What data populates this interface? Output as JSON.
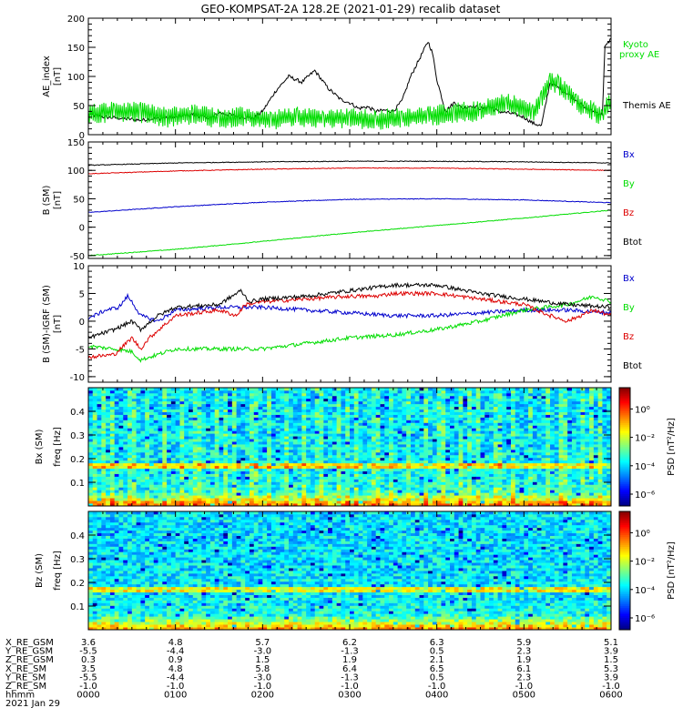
{
  "title": "GEO-KOMPSAT-2A 128.2E (2021-01-29) recalib dataset",
  "chart_data": [
    {
      "type": "line",
      "id": "ae",
      "ylabel": "AE_index",
      "unit": "[nT]",
      "ylim": [
        0,
        200
      ],
      "yticks": [
        0,
        50,
        100,
        150,
        200
      ],
      "x_hours": [
        0,
        6
      ],
      "series": [
        {
          "name": "Themis AE",
          "color": "#000000",
          "x": [
            0,
            0.2,
            0.4,
            0.6,
            0.8,
            1.0,
            1.2,
            1.4,
            1.5,
            1.7,
            1.9,
            2.0,
            2.15,
            2.3,
            2.45,
            2.6,
            2.75,
            2.9,
            3.0,
            3.1,
            3.2,
            3.3,
            3.4,
            3.5,
            3.6,
            3.7,
            3.8,
            3.9,
            3.95,
            4.0,
            4.1,
            4.2,
            4.3,
            4.4,
            4.5,
            4.6,
            4.7,
            4.8,
            4.9,
            5.0,
            5.1,
            5.2,
            5.3,
            5.4,
            5.5,
            5.6,
            5.7,
            5.8,
            5.9,
            5.93,
            6.0
          ],
          "y": [
            35,
            30,
            28,
            25,
            28,
            30,
            35,
            28,
            38,
            32,
            28,
            40,
            75,
            100,
            90,
            110,
            80,
            60,
            55,
            45,
            48,
            40,
            42,
            40,
            58,
            100,
            130,
            160,
            140,
            95,
            40,
            55,
            45,
            50,
            45,
            48,
            40,
            38,
            35,
            30,
            20,
            15,
            90,
            80,
            70,
            60,
            45,
            40,
            35,
            150,
            165
          ]
        },
        {
          "name": "Kyoto proxy AE",
          "color": "#00dd00",
          "x": [
            0,
            0.3,
            0.6,
            0.9,
            1.2,
            1.5,
            1.8,
            2.1,
            2.4,
            2.7,
            3.0,
            3.3,
            3.6,
            3.9,
            4.2,
            4.5,
            4.8,
            5.0,
            5.1,
            5.2,
            5.3,
            5.4,
            5.5,
            5.6,
            5.7,
            5.8,
            5.9,
            5.95,
            6.0
          ],
          "y": [
            35,
            40,
            38,
            30,
            35,
            28,
            32,
            25,
            30,
            28,
            28,
            25,
            30,
            32,
            38,
            40,
            55,
            45,
            35,
            60,
            95,
            85,
            70,
            60,
            45,
            40,
            30,
            50,
            65
          ]
        }
      ]
    },
    {
      "type": "line",
      "id": "b_sm",
      "ylabel": "B (SM)",
      "unit": "[nT]",
      "ylim": [
        -55,
        150
      ],
      "yticks": [
        -50,
        0,
        50,
        100,
        150
      ],
      "x_hours": [
        0,
        6
      ],
      "series": [
        {
          "name": "Bx",
          "color": "#0000cc",
          "x": [
            0,
            1,
            2,
            3,
            4,
            5,
            6
          ],
          "y": [
            26,
            36,
            44,
            49,
            50,
            48,
            43
          ]
        },
        {
          "name": "By",
          "color": "#00dd00",
          "x": [
            0,
            1,
            2,
            3,
            4,
            5,
            6
          ],
          "y": [
            -50,
            -39,
            -25,
            -10,
            3,
            16,
            30
          ]
        },
        {
          "name": "Bz",
          "color": "#dd0000",
          "x": [
            0,
            1,
            2,
            3,
            4,
            5,
            6
          ],
          "y": [
            94,
            99,
            102,
            104,
            104,
            102,
            100
          ]
        },
        {
          "name": "Btot",
          "color": "#000000",
          "x": [
            0,
            1,
            2,
            3,
            4,
            5,
            6
          ],
          "y": [
            109,
            113,
            115,
            116,
            116,
            115,
            113
          ]
        }
      ]
    },
    {
      "type": "line",
      "id": "db",
      "ylabel": "B (SM)-IGRF (SM)",
      "unit": "[nT]",
      "ylim": [
        -11,
        10
      ],
      "yticks": [
        -10,
        -5,
        0,
        5,
        10
      ],
      "x_hours": [
        0,
        6
      ],
      "series": [
        {
          "name": "Bx",
          "color": "#0000cc",
          "x": [
            0,
            0.2,
            0.35,
            0.45,
            0.5,
            0.6,
            0.7,
            0.8,
            1.0,
            1.5,
            2.0,
            2.5,
            3.0,
            3.5,
            4.0,
            4.5,
            5.0,
            5.5,
            6.0
          ],
          "y": [
            0.5,
            2,
            2.5,
            4.5,
            3.5,
            1,
            0.5,
            0,
            2,
            2.5,
            2.5,
            2,
            1.5,
            1,
            1,
            1.5,
            2,
            2,
            1.5
          ]
        },
        {
          "name": "By",
          "color": "#00dd00",
          "x": [
            0,
            0.3,
            0.5,
            0.6,
            0.8,
            1.0,
            1.5,
            2.0,
            2.5,
            3.0,
            3.5,
            4.0,
            4.5,
            5.0,
            5.5,
            5.8,
            6.0
          ],
          "y": [
            -4.5,
            -5,
            -5.5,
            -7,
            -6,
            -5,
            -5,
            -5,
            -4,
            -3,
            -2.5,
            -1.5,
            0,
            2,
            3,
            4.5,
            3.5
          ]
        },
        {
          "name": "Bz",
          "color": "#dd0000",
          "x": [
            0,
            0.3,
            0.5,
            0.6,
            0.7,
            1.0,
            1.5,
            1.7,
            1.8,
            2.0,
            2.5,
            3.0,
            3.3,
            3.5,
            4.0,
            4.5,
            5.0,
            5.3,
            5.5,
            5.8,
            6.0
          ],
          "y": [
            -6.5,
            -6,
            -3,
            -5,
            -3,
            1,
            2,
            1,
            3,
            3.5,
            4,
            4.5,
            4.5,
            5,
            5,
            4,
            3,
            1,
            0,
            2,
            1
          ]
        },
        {
          "name": "Btot",
          "color": "#000000",
          "x": [
            0,
            0.3,
            0.5,
            0.6,
            0.8,
            1.0,
            1.5,
            1.75,
            1.85,
            2.0,
            2.5,
            3.0,
            3.5,
            4.0,
            4.5,
            5.0,
            5.5,
            6.0
          ],
          "y": [
            -3,
            -1.5,
            0,
            -1.5,
            1,
            2.5,
            3,
            5.5,
            3.5,
            4,
            4.5,
            5.5,
            6.5,
            6.5,
            5,
            4,
            3,
            2.5
          ]
        }
      ]
    },
    {
      "type": "heatmap",
      "id": "spec_bx",
      "ylabel": "Bx (SM)",
      "flabel": "freq [Hz]",
      "ylim": [
        0,
        0.5
      ],
      "yticks": [
        0.1,
        0.2,
        0.3,
        0.4
      ],
      "colorbar_label": "PSD [nT²/Hz]",
      "colorbar_ticks": [
        "10^0",
        "10^-2",
        "10^-4",
        "10^-6"
      ]
    },
    {
      "type": "heatmap",
      "id": "spec_bz",
      "ylabel": "Bz (SM)",
      "flabel": "freq [Hz]",
      "ylim": [
        0,
        0.5
      ],
      "yticks": [
        0.1,
        0.2,
        0.3,
        0.4
      ],
      "colorbar_label": "PSD [nT²/Hz]",
      "colorbar_ticks": [
        "10^0",
        "10^-2",
        "10^-4",
        "10^-6"
      ]
    }
  ],
  "ephemeris": {
    "rows": [
      {
        "label": "X_RE_GSM",
        "values": [
          "3.6",
          "4.8",
          "5.7",
          "6.2",
          "6.3",
          "5.9",
          "5.1"
        ]
      },
      {
        "label": "Y_RE_GSM",
        "values": [
          "-5.5",
          "-4.4",
          "-3.0",
          "-1.3",
          "0.5",
          "2.3",
          "3.9"
        ]
      },
      {
        "label": "Z_RE_GSM",
        "values": [
          "0.3",
          "0.9",
          "1.5",
          "1.9",
          "2.1",
          "1.9",
          "1.5"
        ]
      },
      {
        "label": "X_RE_SM",
        "values": [
          "3.5",
          "4.8",
          "5.8",
          "6.4",
          "6.5",
          "6.1",
          "5.3"
        ]
      },
      {
        "label": "Y_RE_SM",
        "values": [
          "-5.5",
          "-4.4",
          "-3.0",
          "-1.3",
          "0.5",
          "2.3",
          "3.9"
        ]
      },
      {
        "label": "Z_RE_SM",
        "values": [
          "-1.0",
          "-1.0",
          "-1.0",
          "-1.0",
          "-1.0",
          "-1.0",
          "-1.0"
        ]
      },
      {
        "label": "hhmm",
        "values": [
          "0000",
          "0100",
          "0200",
          "0300",
          "0400",
          "0500",
          "0600"
        ]
      }
    ],
    "date": "2021 Jan 29"
  }
}
